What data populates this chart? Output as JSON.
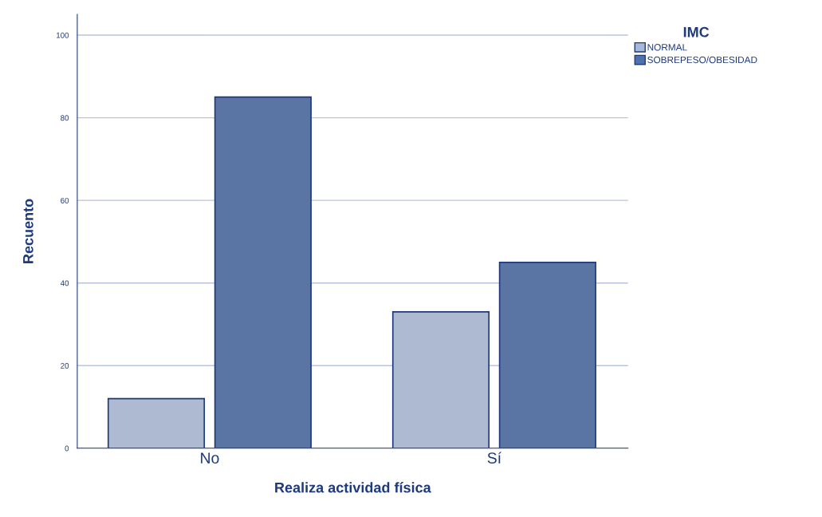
{
  "chart_data": {
    "type": "bar",
    "xlabel": "Realiza actividad física",
    "ylabel": "Recuento",
    "legend_title": "IMC",
    "categories": [
      "No",
      "Sí"
    ],
    "series": [
      {
        "name": "NORMAL",
        "color": "#a8b8d8",
        "values": [
          12,
          33
        ]
      },
      {
        "name": "SOBREPESO/OBESIDAD",
        "color": "#4e72b0",
        "values": [
          85,
          45
        ]
      }
    ],
    "ylim": [
      0,
      105
    ],
    "yticks": [
      0,
      20,
      40,
      60,
      80,
      100
    ],
    "grid": "y",
    "legend": "top right"
  }
}
